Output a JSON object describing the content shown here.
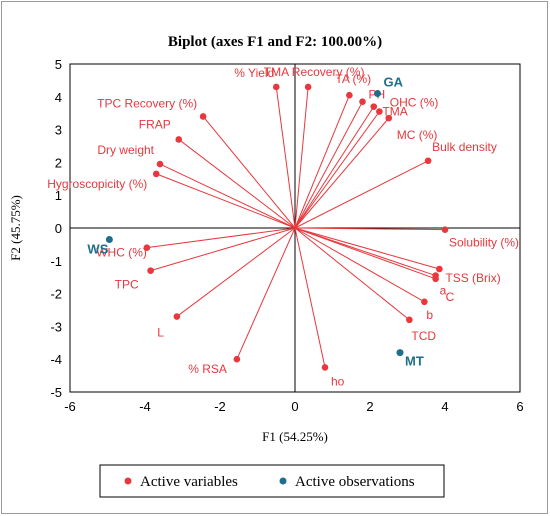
{
  "chart_data": {
    "type": "scatter",
    "title": "Biplot (axes F1 and F2: 100.00%)",
    "xlabel": "F1 (54.25%)",
    "ylabel": "F2 (45.75%)",
    "xlim": [
      -6,
      6
    ],
    "ylim": [
      -5,
      5
    ],
    "xticks": [
      -6,
      -4,
      -2,
      0,
      2,
      4,
      6
    ],
    "yticks": [
      -5,
      -4,
      -3,
      -2,
      -1,
      0,
      1,
      2,
      3,
      4,
      5
    ],
    "colors": {
      "variables": "#e8383d",
      "observations": "#1f6e8c"
    },
    "legend": {
      "placement": "bottom",
      "entries": [
        "Active variables",
        "Active observations"
      ]
    },
    "variables": [
      {
        "label": "% Yield",
        "x": -0.5,
        "y": 4.3
      },
      {
        "label": "TMA Recovery (%)",
        "x": 0.35,
        "y": 4.3
      },
      {
        "label": "TA (%)",
        "x": 1.45,
        "y": 4.05
      },
      {
        "label": "PH",
        "x": 1.8,
        "y": 3.85
      },
      {
        "label": "OHC (%)",
        "x": 2.1,
        "y": 3.7
      },
      {
        "label": "TMA",
        "x": 2.25,
        "y": 3.55
      },
      {
        "label": "MC (%)",
        "x": 2.5,
        "y": 3.35
      },
      {
        "label": "TPC Recovery  (%)",
        "x": -2.45,
        "y": 3.4
      },
      {
        "label": "FRAP",
        "x": -3.1,
        "y": 2.7
      },
      {
        "label": "Dry weight",
        "x": -3.6,
        "y": 1.95
      },
      {
        "label": "Hygroscopicity (%)",
        "x": -3.7,
        "y": 1.65
      },
      {
        "label": "Bulk density",
        "x": 3.55,
        "y": 2.05
      },
      {
        "label": "Solubility (%)",
        "x": 4.0,
        "y": -0.05
      },
      {
        "label": "WHC (%)",
        "x": -3.95,
        "y": -0.6
      },
      {
        "label": "TPC",
        "x": -3.85,
        "y": -1.3
      },
      {
        "label": "TSS (Brix)",
        "x": 3.85,
        "y": -1.25
      },
      {
        "label": "a",
        "x": 3.75,
        "y": -1.45
      },
      {
        "label": "C",
        "x": 3.75,
        "y": -1.55
      },
      {
        "label": "b",
        "x": 3.45,
        "y": -2.25
      },
      {
        "label": "TCD",
        "x": 3.05,
        "y": -2.8
      },
      {
        "label": "L",
        "x": -3.15,
        "y": -2.7
      },
      {
        "label": "% RSA",
        "x": -1.55,
        "y": -4.0
      },
      {
        "label": "ho",
        "x": 0.8,
        "y": -4.25
      }
    ],
    "observations": [
      {
        "label": "GA",
        "x": 2.2,
        "y": 4.1
      },
      {
        "label": "WS",
        "x": -4.95,
        "y": -0.35
      },
      {
        "label": "MT",
        "x": 2.8,
        "y": -3.8
      }
    ]
  }
}
